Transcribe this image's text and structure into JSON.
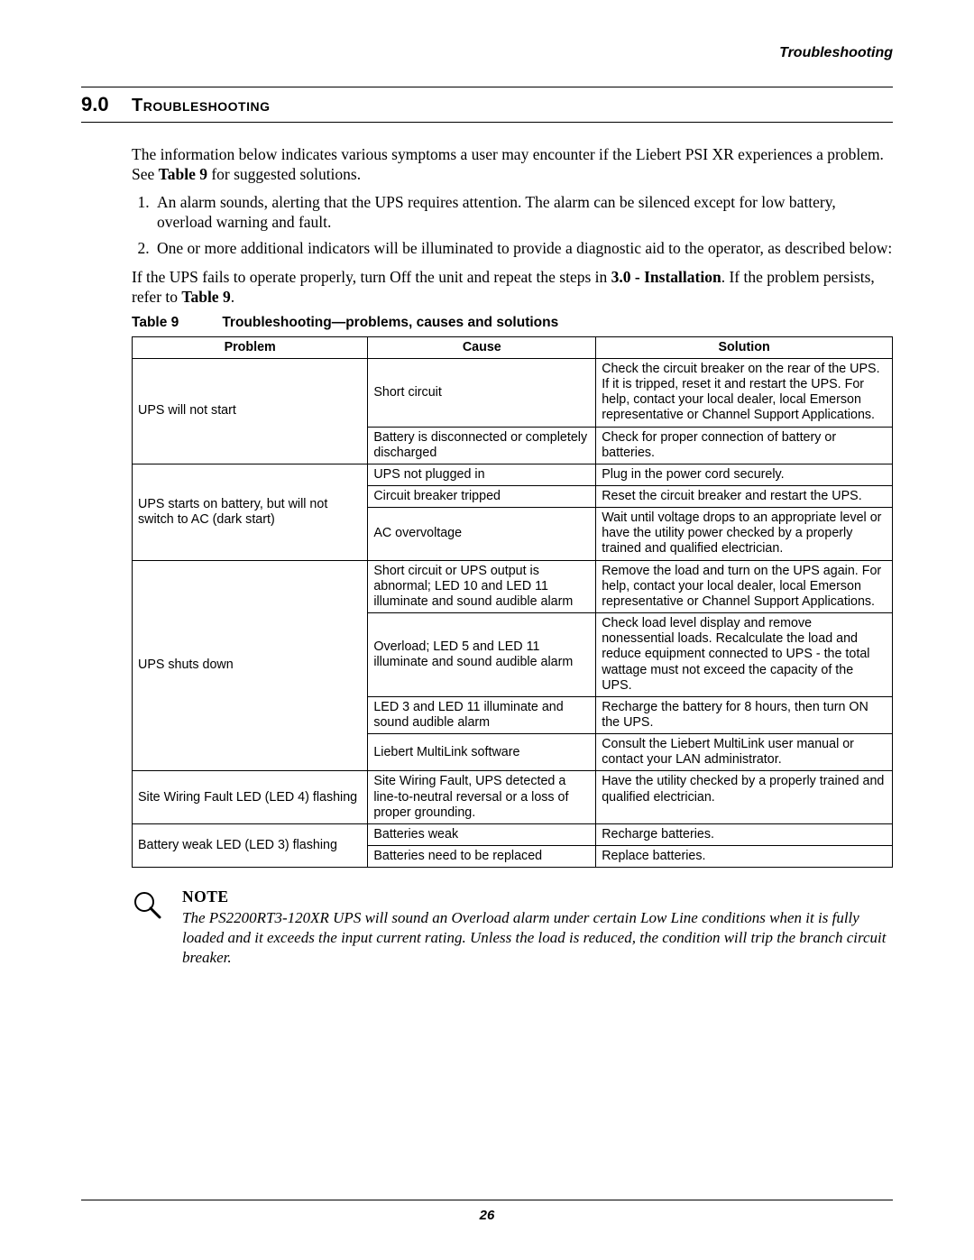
{
  "header": {
    "running": "Troubleshooting"
  },
  "section": {
    "number": "9.0",
    "title": "Troubleshooting"
  },
  "intro": {
    "p1a": "The information below indicates various symptoms a user may encounter if the Liebert PSI XR experiences a problem. See ",
    "p1b": "Table 9",
    "p1c": " for suggested solutions.",
    "li1": "An alarm sounds, alerting that the UPS requires attention. The alarm can be silenced except for low battery, overload warning and fault.",
    "li2": "One or more additional indicators will be illuminated to provide a diagnostic aid to the operator, as described below:",
    "p2a": "If the UPS fails to operate properly, turn Off the unit and repeat the steps in ",
    "p2b": "3.0 - Installation",
    "p2c": ". If the problem persists, refer to ",
    "p2d": "Table 9",
    "p2e": "."
  },
  "table": {
    "label": "Table 9",
    "caption": "Troubleshooting—problems, causes and solutions",
    "headers": {
      "c1": "Problem",
      "c2": "Cause",
      "c3": "Solution"
    },
    "r1": {
      "problem": "UPS will not start",
      "cause": "Short circuit",
      "solution": "Check the circuit breaker on the rear of the UPS.\nIf it is tripped, reset it and restart the UPS. For help, contact your local dealer, local Emerson representative or Channel Support Applications."
    },
    "r2": {
      "cause": "Battery is disconnected or completely discharged",
      "solution": "Check for proper connection of battery or batteries."
    },
    "r3": {
      "problem": "UPS starts on battery, but will not switch to AC (dark start)",
      "cause": "UPS not plugged in",
      "solution": "Plug in the power cord securely."
    },
    "r4": {
      "cause": "Circuit breaker tripped",
      "solution": "Reset the circuit breaker and restart the UPS."
    },
    "r5": {
      "cause": "AC overvoltage",
      "solution": "Wait until voltage drops to an appropriate level or have the utility power checked by a properly trained and qualified electrician."
    },
    "r6": {
      "problem": "UPS shuts down",
      "cause": "Short circuit or UPS output is abnormal; LED 10 and LED 11 illuminate and sound audible alarm",
      "solution": "Remove the load and turn on the UPS again. For help, contact your local dealer, local Emerson representative or Channel Support Applications."
    },
    "r7": {
      "cause": "Overload; LED 5 and LED 11 illuminate and sound audible alarm",
      "solution": "Check load level display and remove nonessential loads. Recalculate the load and reduce equipment connected to UPS - the total wattage must not exceed the capacity of the UPS."
    },
    "r8": {
      "cause": "LED 3 and LED 11 illuminate and sound audible alarm",
      "solution": "Recharge the battery for 8 hours, then turn ON the UPS."
    },
    "r9": {
      "cause": "Liebert MultiLink software",
      "solution": "Consult the Liebert MultiLink user manual or contact your LAN administrator."
    },
    "r10": {
      "problem": "Site Wiring Fault LED (LED 4) flashing",
      "cause": "Site Wiring Fault, UPS detected a line-to-neutral reversal or a loss of proper grounding.",
      "solution": "Have the utility checked by a properly trained and qualified electrician."
    },
    "r11": {
      "problem": "Battery weak LED (LED 3) flashing",
      "cause": "Batteries weak",
      "solution": "Recharge batteries."
    },
    "r12": {
      "cause": "Batteries need to be replaced",
      "solution": "Replace batteries."
    }
  },
  "note": {
    "label": "NOTE",
    "text": "The PS2200RT3-120XR UPS will sound an Overload alarm under certain Low Line conditions when it is fully loaded and it exceeds the input current rating. Unless the load is reduced, the condition will trip the branch circuit breaker."
  },
  "footer": {
    "page": "26"
  }
}
